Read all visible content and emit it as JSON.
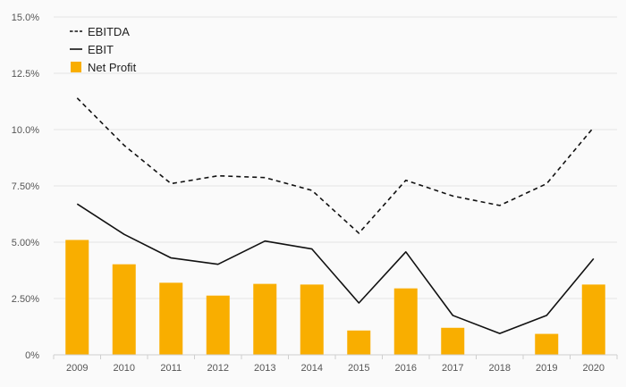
{
  "chart_data": {
    "type": "bar",
    "categories": [
      "2009",
      "2010",
      "2011",
      "2012",
      "2013",
      "2014",
      "2015",
      "2016",
      "2017",
      "2018",
      "2019",
      "2020"
    ],
    "series": [
      {
        "name": "EBITDA",
        "kind": "line",
        "style": "dashed",
        "color": "#111111",
        "values": [
          11.4,
          9.3,
          7.6,
          7.95,
          7.87,
          7.3,
          5.4,
          7.75,
          7.05,
          6.63,
          7.6,
          10.1
        ]
      },
      {
        "name": "EBIT",
        "kind": "line",
        "style": "solid",
        "color": "#111111",
        "values": [
          6.7,
          5.35,
          4.3,
          4.02,
          5.05,
          4.7,
          2.3,
          4.57,
          1.75,
          0.95,
          1.75,
          4.27
        ]
      },
      {
        "name": "Net Profit",
        "kind": "bar",
        "color": "#f9ae00",
        "values": [
          5.1,
          4.02,
          3.2,
          2.63,
          3.15,
          3.12,
          1.08,
          2.95,
          1.2,
          null,
          0.93,
          3.12
        ]
      }
    ],
    "y_ticks": [
      "0%",
      "2.50%",
      "5.00%",
      "7.50%",
      "10.0%",
      "12.5%",
      "15.0%"
    ],
    "y_tick_values": [
      0,
      2.5,
      5,
      7.5,
      10,
      12.5,
      15
    ],
    "ylim": [
      0,
      15
    ],
    "title": "",
    "xlabel": "",
    "ylabel": "",
    "grid": true,
    "legend_position": "top-left"
  }
}
